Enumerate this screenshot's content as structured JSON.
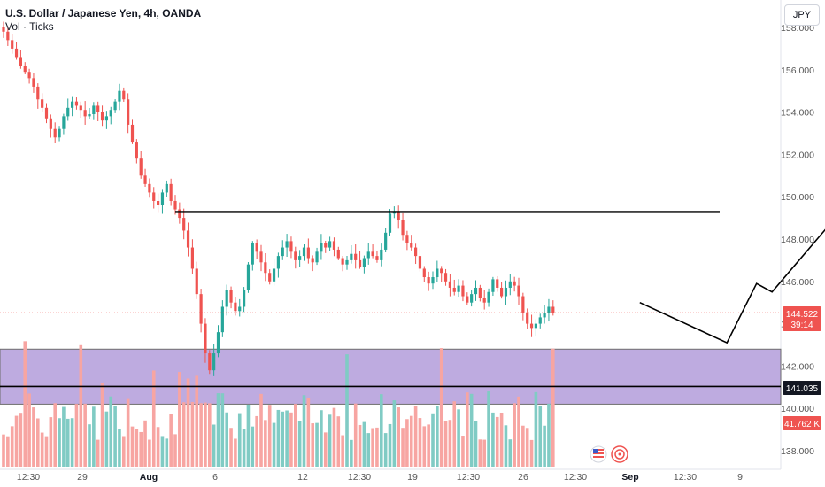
{
  "header": {
    "title": "U.S. Dollar / Japanese Yen, 4h, OANDA",
    "subtitle": "Vol · Ticks"
  },
  "currency_button": "JPY",
  "badges": {
    "current_price": "144.522",
    "countdown": "39:14",
    "support_level": "141.035",
    "volume": "41.762 K"
  },
  "colors": {
    "up": "#26a69a",
    "down": "#ef5350",
    "zone": "#b39ddb",
    "volume_up": "#80cbc4",
    "volume_down": "#f7a5a2"
  },
  "icons": [
    "us-flag-icon",
    "target-icon"
  ],
  "chart_data": {
    "type": "candlestick",
    "y_axis": {
      "labels": [
        "138.000",
        "140.000",
        "142.000",
        "144.000",
        "146.000",
        "148.000",
        "150.000",
        "152.000",
        "154.000",
        "156.000",
        "158.000"
      ],
      "range": [
        137.3,
        158.2
      ]
    },
    "x_axis": {
      "labels": [
        "12:30",
        "29",
        "Aug",
        "6",
        "12",
        "12:30",
        "19",
        "12:30",
        "26",
        "12:30",
        "Sep",
        "12:30",
        "9"
      ]
    },
    "series_closes": [
      157.8,
      157.4,
      157.0,
      156.6,
      156.2,
      155.9,
      155.6,
      155.2,
      154.6,
      154.2,
      153.7,
      153.2,
      152.8,
      153.2,
      153.8,
      154.2,
      154.5,
      154.3,
      154.1,
      153.8,
      153.9,
      154.3,
      154.0,
      153.6,
      153.8,
      154.1,
      154.5,
      155.0,
      154.6,
      153.4,
      152.6,
      151.8,
      151.0,
      150.6,
      150.2,
      149.8,
      149.6,
      150.2,
      150.6,
      149.8,
      149.4,
      149.0,
      148.4,
      147.6,
      146.6,
      145.4,
      144.0,
      142.6,
      141.8,
      142.6,
      143.6,
      144.8,
      145.6,
      145.0,
      144.6,
      144.8,
      145.6,
      146.8,
      147.8,
      147.4,
      146.9,
      146.4,
      146.0,
      146.6,
      147.2,
      147.6,
      147.9,
      147.4,
      147.0,
      147.2,
      147.6,
      147.1,
      146.9,
      147.4,
      147.8,
      147.6,
      147.9,
      147.5,
      147.1,
      146.8,
      147.0,
      147.3,
      147.0,
      146.7,
      147.1,
      147.4,
      147.2,
      147.0,
      147.5,
      148.3,
      149.2,
      149.3,
      148.9,
      148.2,
      147.8,
      147.6,
      147.2,
      146.6,
      146.2,
      145.9,
      146.2,
      146.6,
      146.4,
      146.0,
      145.7,
      145.5,
      145.8,
      145.3,
      145.0,
      145.4,
      145.7,
      145.2,
      145.0,
      145.5,
      146.1,
      145.7,
      145.3,
      145.7,
      146.0,
      145.8,
      145.3,
      144.5,
      144.0,
      143.8,
      144.0,
      144.3,
      144.5,
      144.8,
      144.5
    ],
    "projection_path": [
      [
        148.2,
        145.0
      ],
      [
        168.5,
        143.1
      ],
      [
        175.4,
        145.9
      ],
      [
        179.0,
        145.5
      ],
      [
        195.0,
        149.3
      ]
    ],
    "resistance_level": 149.3,
    "support_level": 141.035,
    "demand_zone": [
      140.2,
      142.8
    ],
    "grid": false
  }
}
